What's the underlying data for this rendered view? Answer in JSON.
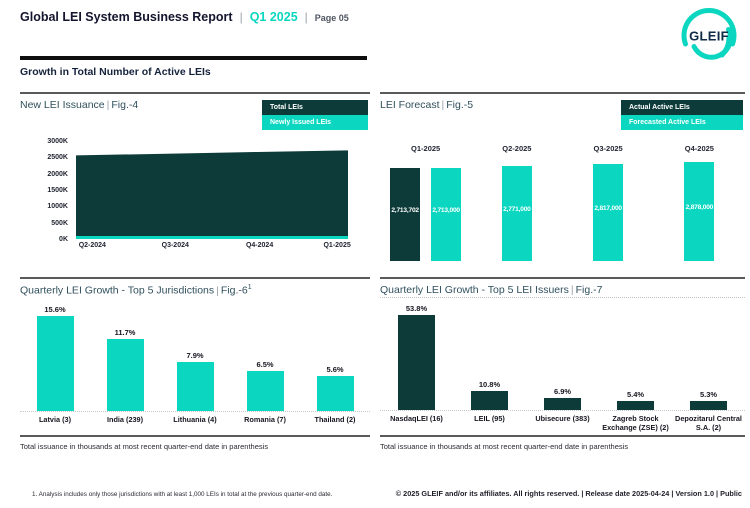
{
  "ui": {
    "sep": "|"
  },
  "header": {
    "title": "Global LEI System Business Report",
    "period": "Q1 2025",
    "page": "Page 05",
    "logo_text": "GLEIF"
  },
  "section": {
    "title": "Growth in Total Number of Active LEIs"
  },
  "colors": {
    "teal": "#0bd7c1",
    "dark_teal": "#0c3b39",
    "accent": "#0bd7c1"
  },
  "chart_data": [
    {
      "id": "new-lei-issuance",
      "type": "area",
      "title": "New LEI Issuance",
      "fig": "Fig.-4",
      "x": [
        "Q2-2024",
        "Q3-2024",
        "Q4-2024",
        "Q1-2025"
      ],
      "series": [
        {
          "name": "Total LEIs",
          "color": "#0c3b39",
          "values": [
            2560000,
            2611000,
            2662000,
            2713702
          ]
        },
        {
          "name": "Newly Issued LEIs",
          "color": "#0bd7c1",
          "values": [
            60000,
            60000,
            60000,
            60000
          ]
        }
      ],
      "yticks": [
        "0K",
        "500K",
        "1000K",
        "1500K",
        "2000K",
        "2500K",
        "3000K"
      ],
      "ylim": [
        0,
        3000000
      ],
      "legend_position": "top-right",
      "grid": false
    },
    {
      "id": "lei-forecast",
      "type": "bar",
      "title": "LEI Forecast",
      "fig": "Fig.-5",
      "categories": [
        "Q1-2025",
        "Q2-2025",
        "Q3-2025",
        "Q4-2025"
      ],
      "series": [
        {
          "name": "Actual Active LEIs",
          "color": "#0c3b39",
          "values": [
            2713702,
            null,
            null,
            null
          ],
          "labels": [
            "2,713,702",
            "",
            "",
            ""
          ]
        },
        {
          "name": "Forecasted Active LEIs",
          "color": "#0bd7c1",
          "values": [
            2713000,
            2771000,
            2817000,
            2878000
          ],
          "labels": [
            "2,713,000",
            "2,771,000",
            "2,817,000",
            "2,878,000"
          ]
        }
      ],
      "legend_position": "top-right",
      "grid": false
    },
    {
      "id": "top5-jurisdictions",
      "type": "bar",
      "title": "Quarterly LEI Growth - Top 5 Jurisdictions",
      "fig": "Fig.-6",
      "fig_sup": "1",
      "categories": [
        "Latvia (3)",
        "India (239)",
        "Lithuania (4)",
        "Romania (7)",
        "Thailand (2)"
      ],
      "values": [
        15.6,
        11.7,
        7.9,
        6.5,
        5.6
      ],
      "labels": [
        "15.6%",
        "11.7%",
        "7.9%",
        "6.5%",
        "5.6%"
      ],
      "bar_color": "#0bd7c1",
      "ylim": [
        0,
        16
      ],
      "grid": false
    },
    {
      "id": "top5-lei-issuers",
      "type": "bar",
      "title": "Quarterly LEI Growth - Top 5 LEI Issuers",
      "fig": "Fig.-7",
      "categories": [
        "NasdaqLEI (16)",
        "LEIL (95)",
        "Ubisecure (383)",
        "Zagreb Stock Exchange (ZSE) (2)",
        "Depozitarul Central S.A. (2)"
      ],
      "values": [
        53.8,
        10.8,
        6.9,
        5.4,
        5.3
      ],
      "labels": [
        "53.8%",
        "10.8%",
        "6.9%",
        "5.4%",
        "5.3%"
      ],
      "bar_color": "#0c3b39",
      "ylim": [
        0,
        55
      ],
      "grid": false
    }
  ],
  "notes": {
    "jurisdictions": "Total issuance in thousands at most recent quarter-end date in parenthesis",
    "issuers": "Total issuance in thousands at most recent quarter-end date in parenthesis"
  },
  "footer": {
    "footnote": "1. Analysis includes only those jurisdictions with at least 1,000 LEIs in total at the previous quarter-end date.",
    "copyright": "© 2025 GLEIF and/or its affiliates. All rights reserved. | Release date 2025-04-24 | Version 1.0 | Public"
  }
}
